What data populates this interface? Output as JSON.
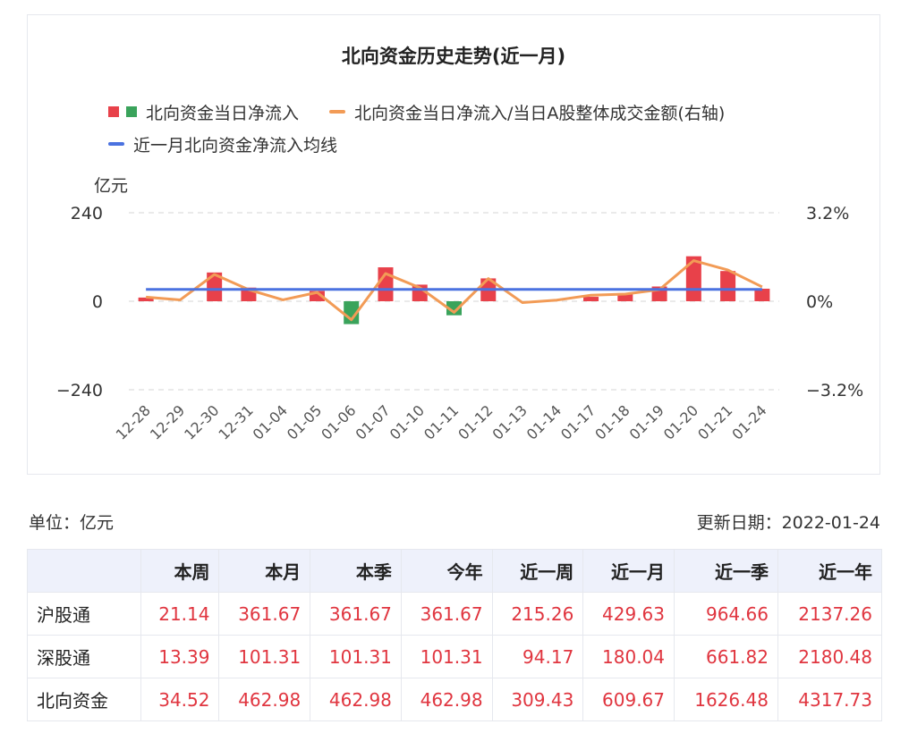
{
  "chart_data": {
    "type": "bar",
    "title": "北向资金历史走势(近一月)",
    "legend": [
      {
        "label": "北向资金当日净流入",
        "type": "bar",
        "colors": [
          "#e8414a",
          "#3aa35b"
        ]
      },
      {
        "label": "北向资金当日净流入/当日A股整体成交金额(右轴)",
        "type": "line",
        "color": "#f29b56"
      },
      {
        "label": "近一月北向资金净流入均线",
        "type": "line",
        "color": "#4b72e0"
      }
    ],
    "ylabel": "亿元",
    "ylim": [
      -240,
      240
    ],
    "yticks": [
      "240",
      "0",
      "−240"
    ],
    "y2lim": [
      -3.2,
      3.2
    ],
    "y2ticks": [
      "3.2%",
      "0%",
      "−3.2%"
    ],
    "categories": [
      "12-28",
      "12-29",
      "12-30",
      "12-31",
      "01-04",
      "01-05",
      "01-06",
      "01-07",
      "01-10",
      "01-11",
      "01-12",
      "01-13",
      "01-14",
      "01-17",
      "01-18",
      "01-19",
      "01-20",
      "01-21",
      "01-24"
    ],
    "series": [
      {
        "values": [
          10,
          0,
          78,
          37,
          0,
          28,
          -62,
          92,
          45,
          -38,
          62,
          0,
          0,
          12,
          22,
          40,
          122,
          82,
          34
        ]
      },
      {
        "values": [
          0.15,
          0.05,
          0.97,
          0.42,
          0.05,
          0.32,
          -0.67,
          1.0,
          0.49,
          -0.4,
          0.82,
          -0.05,
          0.04,
          0.22,
          0.26,
          0.42,
          1.47,
          1.13,
          0.52
        ]
      },
      {
        "values": [
          32,
          32,
          32,
          32,
          32,
          32,
          32,
          32,
          32,
          32,
          32,
          32,
          32,
          32,
          32,
          32,
          32,
          32,
          32
        ]
      }
    ],
    "grid": true,
    "legend_position": "top"
  },
  "colors": {
    "positive": "#e8414a",
    "negative": "#3aa35b",
    "ratio_line": "#f29b56",
    "avg_line": "#4b72e0",
    "value_text": "#e0353f"
  },
  "unit_label": "单位：亿元",
  "update_label": "更新日期：2022-01-24",
  "table": {
    "columns": [
      "本周",
      "本月",
      "本季",
      "今年",
      "近一周",
      "近一月",
      "近一季",
      "近一年"
    ],
    "rows": [
      {
        "name": "沪股通",
        "values": [
          "21.14",
          "361.67",
          "361.67",
          "361.67",
          "215.26",
          "429.63",
          "964.66",
          "2137.26"
        ]
      },
      {
        "name": "深股通",
        "values": [
          "13.39",
          "101.31",
          "101.31",
          "101.31",
          "94.17",
          "180.04",
          "661.82",
          "2180.48"
        ]
      },
      {
        "name": "北向资金",
        "values": [
          "34.52",
          "462.98",
          "462.98",
          "462.98",
          "309.43",
          "609.67",
          "1626.48",
          "4317.73"
        ]
      }
    ]
  }
}
